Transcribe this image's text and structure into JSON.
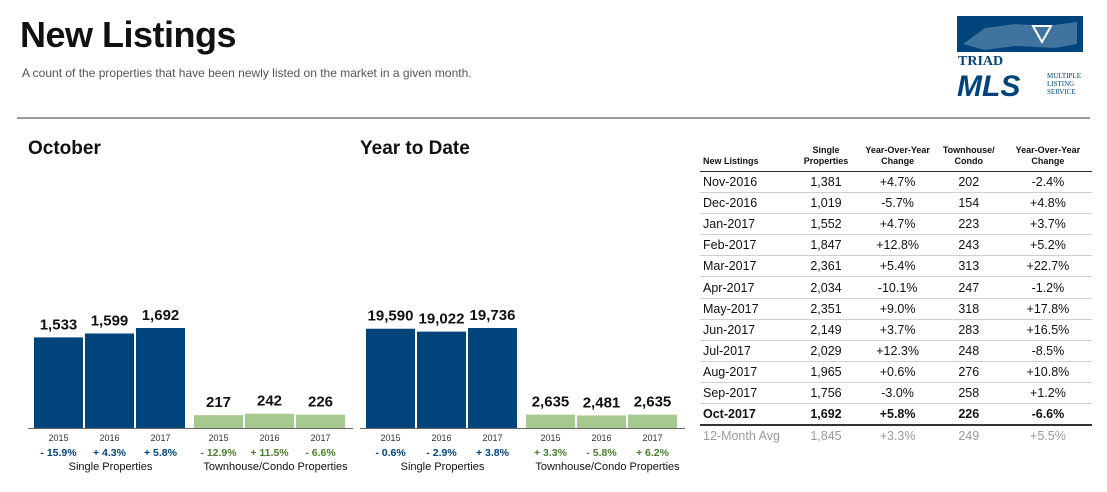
{
  "header": {
    "title": "New Listings",
    "subtitle": "A count of the properties that have been newly listed on the market in a given month."
  },
  "logo": {
    "top": "TRIAD",
    "main": "MLS",
    "side": [
      "MULTIPLE",
      "LISTING",
      "SERVICE"
    ]
  },
  "colors": {
    "single": "#00447c",
    "townhouse": "#a6c98f",
    "pos": "#1f5fa0",
    "neg": "#00447c",
    "town_change": "#4a7f2c"
  },
  "chart_data": [
    {
      "type": "bar",
      "title": "October",
      "categories": [
        "2015",
        "2016",
        "2017"
      ],
      "series": [
        {
          "name": "Single Properties",
          "values": [
            1533,
            1599,
            1692
          ],
          "labels": [
            "1,533",
            "1,599",
            "1,692"
          ],
          "changes": [
            "- 15.9%",
            "+ 4.3%",
            "+ 5.8%"
          ]
        },
        {
          "name": "Townhouse/Condo Properties",
          "values": [
            217,
            242,
            226
          ],
          "labels": [
            "217",
            "242",
            "226"
          ],
          "changes": [
            "- 12.9%",
            "+ 11.5%",
            "- 6.6%"
          ]
        }
      ]
    },
    {
      "type": "bar",
      "title": "Year to Date",
      "categories": [
        "2015",
        "2016",
        "2017"
      ],
      "series": [
        {
          "name": "Single Properties",
          "values": [
            19590,
            19022,
            19736
          ],
          "labels": [
            "19,590",
            "19,022",
            "19,736"
          ],
          "changes": [
            "- 0.6%",
            "- 2.9%",
            "+ 3.8%"
          ]
        },
        {
          "name": "Townhouse/Condo Properties",
          "values": [
            2635,
            2481,
            2635
          ],
          "labels": [
            "2,635",
            "2,481",
            "2,635"
          ],
          "changes": [
            "+ 3.3%",
            "- 5.8%",
            "+ 6.2%"
          ]
        }
      ]
    },
    {
      "type": "table",
      "columns": [
        "New Listings",
        "Single Properties",
        "Year-Over-Year Change",
        "Townhouse/ Condo",
        "Year-Over-Year Change"
      ],
      "rows": [
        [
          "Nov-2016",
          "1,381",
          "+4.7%",
          "202",
          "-2.4%"
        ],
        [
          "Dec-2016",
          "1,019",
          "-5.7%",
          "154",
          "+4.8%"
        ],
        [
          "Jan-2017",
          "1,552",
          "+4.7%",
          "223",
          "+3.7%"
        ],
        [
          "Feb-2017",
          "1,847",
          "+12.8%",
          "243",
          "+5.2%"
        ],
        [
          "Mar-2017",
          "2,361",
          "+5.4%",
          "313",
          "+22.7%"
        ],
        [
          "Apr-2017",
          "2,034",
          "-10.1%",
          "247",
          "-1.2%"
        ],
        [
          "May-2017",
          "2,351",
          "+9.0%",
          "318",
          "+17.8%"
        ],
        [
          "Jun-2017",
          "2,149",
          "+3.7%",
          "283",
          "+16.5%"
        ],
        [
          "Jul-2017",
          "2,029",
          "+12.3%",
          "248",
          "-8.5%"
        ],
        [
          "Aug-2017",
          "1,965",
          "+0.6%",
          "276",
          "+10.8%"
        ],
        [
          "Sep-2017",
          "1,756",
          "-3.0%",
          "258",
          "+1.2%"
        ],
        [
          "Oct-2017",
          "1,692",
          "+5.8%",
          "226",
          "-6.6%"
        ],
        [
          "12-Month Avg",
          "1,845",
          "+3.3%",
          "249",
          "+5.5%"
        ]
      ]
    }
  ]
}
